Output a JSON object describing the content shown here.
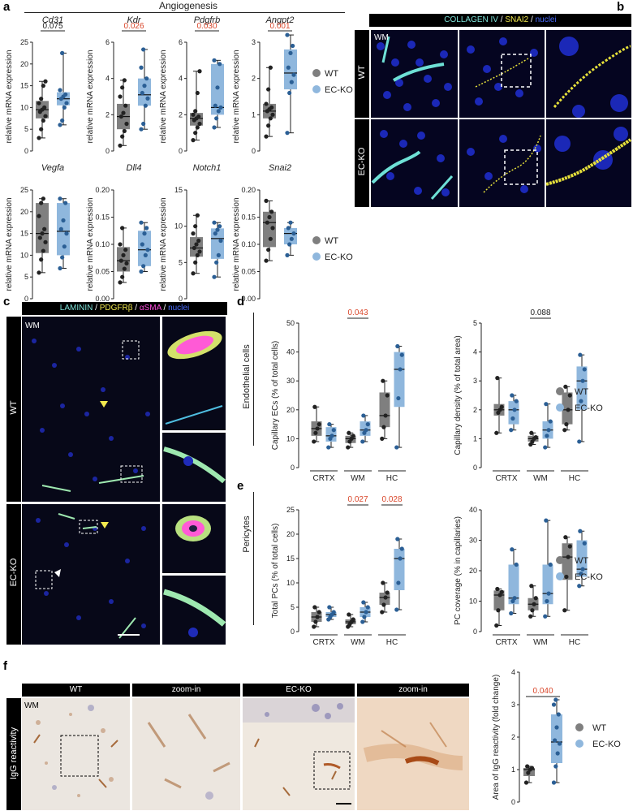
{
  "colors": {
    "wt": "#7f7f7f",
    "ko": "#8fb7dd",
    "sig": "#d9472b",
    "nonsig": "#222222",
    "dot": "#222222",
    "dot_ko": "#2b5f95"
  },
  "panel_labels": {
    "a": "a",
    "b": "b",
    "c": "c",
    "d": "d",
    "e": "e",
    "f": "f"
  },
  "panel_a": {
    "section_title": "Angiogenesis",
    "legend": {
      "wt": "WT",
      "ko": "EC-KO"
    }
  },
  "panel_b": {
    "header": {
      "collagen": "COLLAGEN IV",
      "sep1": " / ",
      "snai2": "SNAI2",
      "sep2": " / ",
      "nuclei": "nuclei"
    },
    "region": "WM",
    "rows": [
      "WT",
      "EC-KO"
    ]
  },
  "panel_c": {
    "header": {
      "laminin": "LAMININ",
      "sep1": " / ",
      "pdgfrb": "PDGFRβ",
      "sep2": " / ",
      "asma": "αSMA",
      "sep3": " / ",
      "nuclei": "nuclei"
    },
    "region": "WM",
    "rows": [
      "WT",
      "EC-KO"
    ]
  },
  "panel_d": {
    "side_label": "Endothelial cells",
    "legend": {
      "wt": "WT",
      "ko": "EC-KO"
    }
  },
  "panel_e": {
    "side_label": "Pericytes",
    "legend": {
      "wt": "WT",
      "ko": "EC-KO"
    }
  },
  "panel_f": {
    "headers": [
      "WT",
      "zoom-in",
      "EC-KO",
      "zoom-in"
    ],
    "region": "WM",
    "side_label": "IgG reactivity",
    "legend": {
      "wt": "WT",
      "ko": "EC-KO"
    }
  },
  "chart_data": [
    {
      "id": "cd31",
      "type": "box",
      "title": "Cd31",
      "ylabel": "relative mRNA expression",
      "ylim": [
        0,
        25
      ],
      "yticks": [
        0,
        5,
        10,
        15,
        20,
        25
      ],
      "series": [
        {
          "name": "WT",
          "min": 3,
          "q1": 7.5,
          "median": 9.5,
          "q3": 11.5,
          "max": 16,
          "points": [
            3,
            5,
            7,
            8,
            9,
            9.5,
            10,
            11,
            12,
            15,
            16
          ]
        },
        {
          "name": "EC-KO",
          "min": 6,
          "q1": 10.5,
          "median": 12,
          "q3": 13.5,
          "max": 22.5,
          "points": [
            6,
            7,
            10,
            11,
            12,
            12.5,
            13,
            14,
            22.5
          ]
        }
      ],
      "pvalue": "0.075",
      "significant": false
    },
    {
      "id": "kdr",
      "type": "box",
      "title": "Kdr",
      "ylabel": "relative mRNA expression",
      "ylim": [
        0,
        6
      ],
      "yticks": [
        0,
        2,
        4,
        6
      ],
      "series": [
        {
          "name": "WT",
          "min": 0.3,
          "q1": 1.2,
          "median": 1.9,
          "q3": 2.6,
          "max": 3.9,
          "points": [
            0.3,
            0.8,
            1.1,
            1.5,
            1.9,
            2.1,
            2.5,
            3,
            3.5,
            3.9
          ]
        },
        {
          "name": "EC-KO",
          "min": 1.2,
          "q1": 2.5,
          "median": 3.1,
          "q3": 4,
          "max": 5.6,
          "points": [
            1.2,
            1.5,
            2.5,
            2.9,
            3.2,
            3.6,
            4,
            4.6,
            5.6
          ]
        }
      ],
      "pvalue": "0.026",
      "significant": true
    },
    {
      "id": "pdgfrb",
      "type": "box",
      "title": "Pdgfrb",
      "ylabel": "relative mRNA expression",
      "ylim": [
        0,
        6
      ],
      "yticks": [
        0,
        2,
        4,
        6
      ],
      "series": [
        {
          "name": "WT",
          "min": 0.6,
          "q1": 1.4,
          "median": 1.8,
          "q3": 2.1,
          "max": 4.4,
          "points": [
            0.6,
            1,
            1.3,
            1.5,
            1.7,
            1.8,
            1.9,
            2,
            2.2,
            3.2,
            4.4
          ]
        },
        {
          "name": "EC-KO",
          "min": 1.3,
          "q1": 2,
          "median": 2.4,
          "q3": 4.8,
          "max": 5,
          "points": [
            1.3,
            1.8,
            2.2,
            2.4,
            2.5,
            3.5,
            4.8,
            5
          ]
        }
      ],
      "pvalue": "0.030",
      "significant": true
    },
    {
      "id": "angpt2",
      "type": "box",
      "title": "Angpt2",
      "ylabel": "relative mRNA expression",
      "ylim": [
        0,
        3
      ],
      "yticks": [
        0,
        1,
        2,
        3
      ],
      "series": [
        {
          "name": "WT",
          "min": 0.4,
          "q1": 0.9,
          "median": 1.1,
          "q3": 1.3,
          "max": 2.3,
          "points": [
            0.4,
            0.7,
            0.9,
            1,
            1.1,
            1.15,
            1.2,
            1.3,
            1.7,
            2.3
          ]
        },
        {
          "name": "EC-KO",
          "min": 0.5,
          "q1": 1.7,
          "median": 2.15,
          "q3": 2.8,
          "max": 3.2,
          "points": [
            0.5,
            1.6,
            1.9,
            2.1,
            2.3,
            2.7,
            2.9,
            3.2
          ]
        }
      ],
      "pvalue": "0.001",
      "significant": true
    },
    {
      "id": "vegfa",
      "type": "box",
      "title": "Vegfa",
      "ylabel": "relative mRNA expression",
      "ylim": [
        0,
        25
      ],
      "yticks": [
        0,
        5,
        10,
        15,
        20,
        25
      ],
      "series": [
        {
          "name": "WT",
          "min": 6,
          "q1": 10.5,
          "median": 15,
          "q3": 22,
          "max": 23,
          "points": [
            6,
            9,
            11,
            13,
            14,
            15,
            16,
            19,
            22,
            23
          ]
        },
        {
          "name": "EC-KO",
          "min": 7,
          "q1": 10,
          "median": 15.5,
          "q3": 22,
          "max": 23,
          "points": [
            7,
            9.5,
            12,
            15,
            16,
            18,
            22,
            23
          ]
        }
      ],
      "pvalue": "",
      "significant": false
    },
    {
      "id": "dll4",
      "type": "box",
      "title": "Dll4",
      "ylabel": "relative mRNA expression",
      "ylim": [
        0,
        0.2
      ],
      "yticks": [
        0.0,
        0.05,
        0.1,
        0.15,
        0.2
      ],
      "series": [
        {
          "name": "WT",
          "min": 0.03,
          "q1": 0.05,
          "median": 0.07,
          "q3": 0.095,
          "max": 0.13,
          "points": [
            0.03,
            0.04,
            0.055,
            0.065,
            0.07,
            0.08,
            0.09,
            0.1,
            0.13
          ]
        },
        {
          "name": "EC-KO",
          "min": 0.05,
          "q1": 0.06,
          "median": 0.09,
          "q3": 0.125,
          "max": 0.14,
          "points": [
            0.05,
            0.06,
            0.08,
            0.09,
            0.1,
            0.12,
            0.13,
            0.14
          ]
        }
      ],
      "pvalue": "",
      "significant": false
    },
    {
      "id": "notch1",
      "type": "box",
      "title": "Notch1",
      "ylabel": "relative mRNA expression",
      "ylim": [
        0,
        15
      ],
      "yticks": [
        0,
        5,
        10,
        15
      ],
      "series": [
        {
          "name": "WT",
          "min": 3.5,
          "q1": 5.8,
          "median": 7,
          "q3": 8.5,
          "max": 11.5,
          "points": [
            3.5,
            5,
            6,
            6.5,
            7,
            7.5,
            8,
            9,
            10,
            11.5
          ]
        },
        {
          "name": "EC-KO",
          "min": 3,
          "q1": 5.5,
          "median": 8.3,
          "q3": 9.7,
          "max": 10.5,
          "points": [
            3,
            5,
            6,
            8,
            9,
            9.5,
            10,
            10.5
          ]
        }
      ],
      "pvalue": "",
      "significant": false
    },
    {
      "id": "snai2",
      "type": "box",
      "title": "Snai2",
      "ylabel": "relative mRNA expression",
      "ylim": [
        0,
        0.2
      ],
      "yticks": [
        0.0,
        0.05,
        0.1,
        0.15,
        0.2
      ],
      "series": [
        {
          "name": "WT",
          "min": 0.07,
          "q1": 0.095,
          "median": 0.14,
          "q3": 0.16,
          "max": 0.18,
          "points": [
            0.07,
            0.09,
            0.11,
            0.13,
            0.14,
            0.15,
            0.16,
            0.18
          ]
        },
        {
          "name": "EC-KO",
          "min": 0.08,
          "q1": 0.1,
          "median": 0.12,
          "q3": 0.13,
          "max": 0.14,
          "points": [
            0.08,
            0.1,
            0.11,
            0.12,
            0.13,
            0.14
          ]
        }
      ],
      "pvalue": "",
      "significant": false
    },
    {
      "id": "cap_ecs",
      "type": "box",
      "ylabel": "Capillary ECs (% of total cells)",
      "ylim": [
        0,
        50
      ],
      "yticks": [
        0,
        10,
        20,
        30,
        40,
        50
      ],
      "categories": [
        "CRTX",
        "WM",
        "HC"
      ],
      "groups": [
        {
          "WT": {
            "min": 9,
            "q1": 11,
            "median": 13.5,
            "q3": 16,
            "max": 21,
            "points": [
              9,
              12,
              13.5,
              15,
              21
            ]
          },
          "EC-KO": {
            "min": 7,
            "q1": 9,
            "median": 11,
            "q3": 14,
            "max": 15,
            "points": [
              7,
              10,
              11,
              13,
              15
            ]
          }
        },
        {
          "WT": {
            "min": 7,
            "q1": 8.5,
            "median": 10,
            "q3": 11,
            "max": 12,
            "points": [
              7,
              9,
              10,
              11,
              12
            ]
          },
          "EC-KO": {
            "min": 9,
            "q1": 11,
            "median": 13,
            "q3": 16,
            "max": 18,
            "points": [
              9,
              12,
              13,
              15,
              18
            ]
          }
        },
        {
          "WT": {
            "min": 10,
            "q1": 14,
            "median": 18,
            "q3": 26,
            "max": 30,
            "points": [
              10,
              14,
              18,
              25,
              30
            ]
          },
          "EC-KO": {
            "min": 7,
            "q1": 21,
            "median": 34,
            "q3": 40,
            "max": 42,
            "points": [
              7,
              24,
              34,
              39,
              42
            ]
          }
        }
      ],
      "pvalues": [
        "",
        "0.043",
        ""
      ],
      "significant": [
        false,
        true,
        false
      ]
    },
    {
      "id": "cap_density",
      "type": "box",
      "ylabel": "Capillary density (% of total area)",
      "ylim": [
        0,
        5
      ],
      "yticks": [
        0,
        1,
        2,
        3,
        4,
        5
      ],
      "categories": [
        "CRTX",
        "WM",
        "HC"
      ],
      "groups": [
        {
          "WT": {
            "min": 1.2,
            "q1": 1.8,
            "median": 2,
            "q3": 2.2,
            "max": 3.1,
            "points": [
              1.2,
              1.9,
              2,
              2.1,
              3.1
            ]
          },
          "EC-KO": {
            "min": 1.3,
            "q1": 1.5,
            "median": 2,
            "q3": 2.3,
            "max": 2.5,
            "points": [
              1.3,
              1.7,
              2,
              2.3,
              2.5
            ]
          }
        },
        {
          "WT": {
            "min": 0.8,
            "q1": 0.9,
            "median": 1,
            "q3": 1.1,
            "max": 1.2,
            "points": [
              0.8,
              0.9,
              1,
              1.05,
              1.2
            ]
          },
          "EC-KO": {
            "min": 0.7,
            "q1": 1,
            "median": 1.3,
            "q3": 1.6,
            "max": 2.2,
            "points": [
              0.7,
              1.1,
              1.3,
              1.6,
              2.2
            ]
          }
        },
        {
          "WT": {
            "min": 1.3,
            "q1": 1.5,
            "median": 2,
            "q3": 2.6,
            "max": 2.8,
            "points": [
              1.3,
              1.5,
              2,
              2.5,
              2.8
            ]
          },
          "EC-KO": {
            "min": 0.9,
            "q1": 2,
            "median": 3,
            "q3": 3.5,
            "max": 3.9,
            "points": [
              0.9,
              2.3,
              3,
              3.4,
              3.9
            ]
          }
        }
      ],
      "pvalues": [
        "",
        "0.088",
        ""
      ],
      "significant": [
        false,
        false,
        false
      ]
    },
    {
      "id": "total_pcs",
      "type": "box",
      "ylabel": "Total PCs (% of total cells)",
      "ylim": [
        0,
        25
      ],
      "yticks": [
        0,
        5,
        10,
        15,
        20,
        25
      ],
      "categories": [
        "CRTX",
        "WM",
        "HC"
      ],
      "groups": [
        {
          "WT": {
            "min": 1,
            "q1": 2,
            "median": 3,
            "q3": 4,
            "max": 5,
            "points": [
              1,
              2,
              3,
              4,
              5
            ]
          },
          "EC-KO": {
            "min": 2.5,
            "q1": 3,
            "median": 3.5,
            "q3": 4,
            "max": 5,
            "points": [
              2.5,
              3,
              3.5,
              4,
              5
            ]
          }
        },
        {
          "WT": {
            "min": 1,
            "q1": 1.5,
            "median": 2,
            "q3": 2.5,
            "max": 3.5,
            "points": [
              1,
              1.5,
              2,
              2.5,
              3.5
            ]
          },
          "EC-KO": {
            "min": 2,
            "q1": 3,
            "median": 4,
            "q3": 5,
            "max": 6,
            "points": [
              2,
              3,
              4,
              5,
              6
            ]
          }
        },
        {
          "WT": {
            "min": 4,
            "q1": 5.5,
            "median": 7,
            "q3": 8,
            "max": 10,
            "points": [
              4,
              5.5,
              7,
              8,
              10
            ]
          },
          "EC-KO": {
            "min": 4.5,
            "q1": 8.5,
            "median": 15,
            "q3": 17,
            "max": 19,
            "points": [
              4.5,
              10,
              15,
              17,
              19
            ]
          }
        }
      ],
      "pvalues": [
        "",
        "0.027",
        "0.028"
      ],
      "significant": [
        false,
        true,
        true
      ]
    },
    {
      "id": "pc_coverage",
      "type": "box",
      "ylabel": "PC coverage (% in capillaries)",
      "ylim": [
        0,
        40
      ],
      "yticks": [
        0,
        10,
        20,
        30,
        40
      ],
      "categories": [
        "CRTX",
        "WM",
        "HC"
      ],
      "groups": [
        {
          "WT": {
            "min": 2,
            "q1": 7,
            "median": 12,
            "q3": 13.5,
            "max": 14,
            "points": [
              2,
              7,
              12,
              13,
              14
            ]
          },
          "EC-KO": {
            "min": 6,
            "q1": 9,
            "median": 11,
            "q3": 22,
            "max": 27,
            "points": [
              6,
              10,
              11,
              22,
              27
            ]
          }
        },
        {
          "WT": {
            "min": 5,
            "q1": 7,
            "median": 9,
            "q3": 11,
            "max": 15,
            "points": [
              5,
              7,
              9,
              11,
              15
            ]
          },
          "EC-KO": {
            "min": 5,
            "q1": 9,
            "median": 12.5,
            "q3": 22,
            "max": 36.5,
            "points": [
              5,
              10,
              12.5,
              22,
              36.5
            ]
          }
        },
        {
          "WT": {
            "min": 7,
            "q1": 17,
            "median": 24.5,
            "q3": 29,
            "max": 31,
            "points": [
              7,
              18,
              24.5,
              28,
              31
            ]
          },
          "EC-KO": {
            "min": 15,
            "q1": 18,
            "median": 20.5,
            "q3": 30,
            "max": 33,
            "points": [
              15,
              19,
              20.5,
              29,
              33
            ]
          }
        }
      ],
      "pvalues": [
        "",
        "",
        ""
      ],
      "significant": [
        false,
        false,
        false
      ]
    },
    {
      "id": "igg",
      "type": "box",
      "ylabel": "Area of IgG reactivity (fold change)",
      "ylim": [
        0,
        4
      ],
      "yticks": [
        0,
        1,
        2,
        3,
        4
      ],
      "series": [
        {
          "name": "WT",
          "min": 0.6,
          "q1": 0.8,
          "median": 1,
          "q3": 1.05,
          "max": 1.1,
          "points": [
            0.6,
            0.9,
            1,
            1.05,
            1.1
          ]
        },
        {
          "name": "EC-KO",
          "min": 0.6,
          "q1": 1.2,
          "median": 1.85,
          "q3": 2.7,
          "max": 3.15,
          "points": [
            0.6,
            1.1,
            1.5,
            1.8,
            1.9,
            2.3,
            2.7,
            3.0,
            3.15
          ]
        }
      ],
      "pvalue": "0.040",
      "significant": true
    }
  ]
}
